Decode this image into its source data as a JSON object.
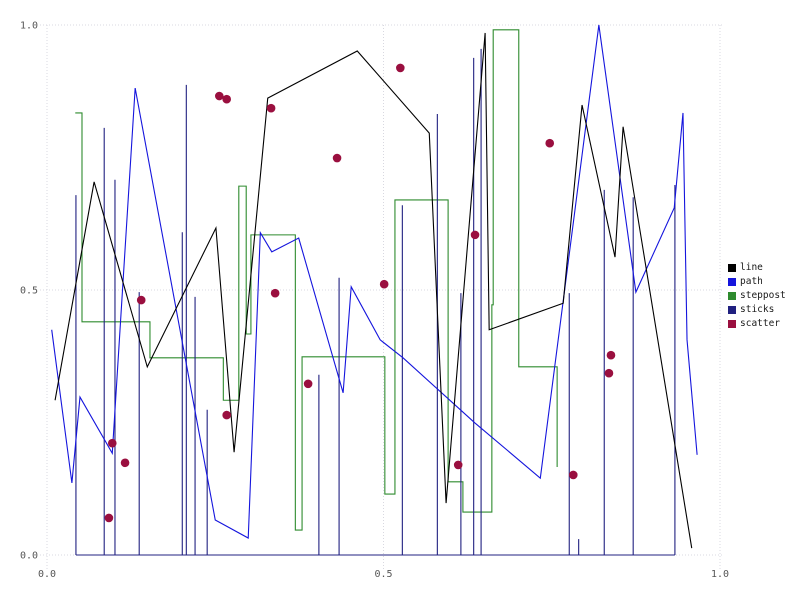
{
  "canvas": {
    "background": "#ffffff"
  },
  "axes": {
    "tick_label_color": "#555555",
    "grid_color": "#d8d8e0",
    "x_tick_labels": [
      "0.0",
      "0.5",
      "1.0"
    ],
    "y_tick_labels": [
      "0.0",
      "0.5",
      "1.0"
    ]
  },
  "legend": {
    "items": [
      {
        "label": "line",
        "color": "#000000"
      },
      {
        "label": "path",
        "color": "#1515dd"
      },
      {
        "label": "steppost",
        "color": "#2e8b2e"
      },
      {
        "label": "sticks",
        "color": "#202080"
      },
      {
        "label": "scatter",
        "color": "#9a0f3f"
      }
    ]
  },
  "chart_data": {
    "type": "line",
    "title": "",
    "xlabel": "",
    "ylabel": "",
    "xlim": [
      0.0,
      1.0
    ],
    "ylim": [
      0.0,
      1.0
    ],
    "grid": {
      "visible": true,
      "style": "dotted"
    },
    "legend_position": "right-outside",
    "x_ticks": [
      {
        "value": 0.0,
        "label": "0.0"
      },
      {
        "value": 0.5,
        "label": "0.5"
      },
      {
        "value": 1.0,
        "label": "1.0"
      }
    ],
    "y_ticks": [
      {
        "value": 0.0,
        "label": "0.0"
      },
      {
        "value": 0.5,
        "label": "0.5"
      },
      {
        "value": 1.0,
        "label": "1.0"
      }
    ],
    "series": [
      {
        "name": "line",
        "type": "line",
        "color": "#000000",
        "points": [
          [
            0.012,
            0.292
          ],
          [
            0.07,
            0.704
          ],
          [
            0.149,
            0.355
          ],
          [
            0.251,
            0.617
          ],
          [
            0.278,
            0.194
          ],
          [
            0.328,
            0.862
          ],
          [
            0.461,
            0.951
          ],
          [
            0.568,
            0.796
          ],
          [
            0.593,
            0.098
          ],
          [
            0.651,
            0.985
          ],
          [
            0.657,
            0.425
          ],
          [
            0.767,
            0.475
          ],
          [
            0.795,
            0.849
          ],
          [
            0.844,
            0.562
          ],
          [
            0.856,
            0.808
          ],
          [
            0.958,
            0.013
          ]
        ]
      },
      {
        "name": "path",
        "type": "line",
        "color": "#1515dd",
        "points": [
          [
            0.007,
            0.425
          ],
          [
            0.037,
            0.136
          ],
          [
            0.049,
            0.298
          ],
          [
            0.097,
            0.192
          ],
          [
            0.131,
            0.881
          ],
          [
            0.25,
            0.066
          ],
          [
            0.299,
            0.032
          ],
          [
            0.317,
            0.608
          ],
          [
            0.334,
            0.572
          ],
          [
            0.374,
            0.598
          ],
          [
            0.44,
            0.306
          ],
          [
            0.452,
            0.506
          ],
          [
            0.495,
            0.406
          ],
          [
            0.529,
            0.372
          ],
          [
            0.636,
            0.249
          ],
          [
            0.733,
            0.145
          ],
          [
            0.82,
            1.0
          ],
          [
            0.875,
            0.496
          ],
          [
            0.932,
            0.655
          ],
          [
            0.945,
            0.834
          ],
          [
            0.951,
            0.406
          ],
          [
            0.966,
            0.189
          ]
        ]
      },
      {
        "name": "steppost",
        "type": "step-post",
        "color": "#2e8b2e",
        "points": [
          [
            0.042,
            0.834
          ],
          [
            0.052,
            0.44
          ],
          [
            0.153,
            0.372
          ],
          [
            0.262,
            0.292
          ],
          [
            0.285,
            0.696
          ],
          [
            0.296,
            0.417
          ],
          [
            0.303,
            0.604
          ],
          [
            0.369,
            0.047
          ],
          [
            0.379,
            0.374
          ],
          [
            0.502,
            0.115
          ],
          [
            0.517,
            0.67
          ],
          [
            0.596,
            0.138
          ],
          [
            0.618,
            0.081
          ],
          [
            0.661,
            0.472
          ],
          [
            0.663,
            0.991
          ],
          [
            0.701,
            0.355
          ],
          [
            0.758,
            0.166
          ]
        ]
      },
      {
        "name": "sticks",
        "type": "stem",
        "color": "#202080",
        "baseline_y": 0.0,
        "points": [
          [
            0.043,
            0.679
          ],
          [
            0.085,
            0.806
          ],
          [
            0.101,
            0.708
          ],
          [
            0.137,
            0.496
          ],
          [
            0.201,
            0.609
          ],
          [
            0.207,
            0.887
          ],
          [
            0.22,
            0.487
          ],
          [
            0.238,
            0.274
          ],
          [
            0.404,
            0.34
          ],
          [
            0.434,
            0.523
          ],
          [
            0.528,
            0.66
          ],
          [
            0.58,
            0.832
          ],
          [
            0.615,
            0.494
          ],
          [
            0.634,
            0.938
          ],
          [
            0.645,
            0.955
          ],
          [
            0.776,
            0.494
          ],
          [
            0.79,
            0.03
          ],
          [
            0.828,
            0.689
          ],
          [
            0.871,
            0.675
          ],
          [
            0.933,
            0.698
          ]
        ]
      },
      {
        "name": "scatter",
        "type": "scatter",
        "color": "#9a0f3f",
        "marker_radius_px": 4.3,
        "points": [
          [
            0.256,
            0.866
          ],
          [
            0.267,
            0.86
          ],
          [
            0.333,
            0.843
          ],
          [
            0.339,
            0.494
          ],
          [
            0.14,
            0.481
          ],
          [
            0.097,
            0.211
          ],
          [
            0.116,
            0.174
          ],
          [
            0.092,
            0.07
          ],
          [
            0.267,
            0.264
          ],
          [
            0.388,
            0.323
          ],
          [
            0.431,
            0.749
          ],
          [
            0.501,
            0.511
          ],
          [
            0.525,
            0.919
          ],
          [
            0.611,
            0.17
          ],
          [
            0.636,
            0.604
          ],
          [
            0.747,
            0.777
          ],
          [
            0.782,
            0.151
          ],
          [
            0.838,
            0.377
          ],
          [
            0.835,
            0.343
          ]
        ]
      }
    ]
  }
}
